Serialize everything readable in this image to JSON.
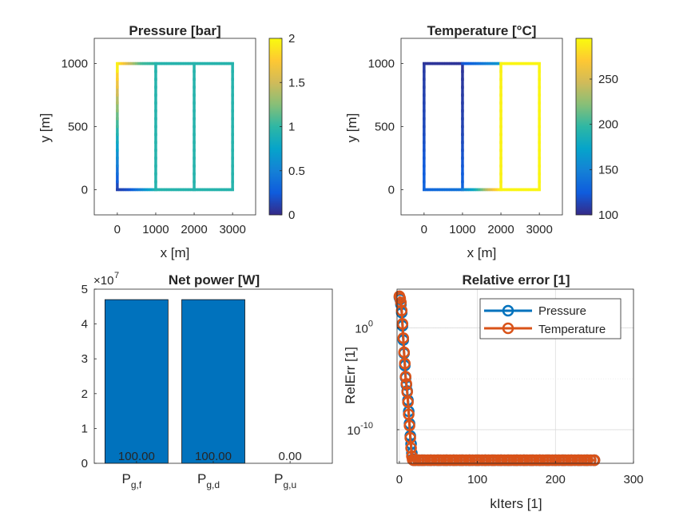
{
  "colors": {
    "bar": "#0072BD",
    "pressure": "#0072BD",
    "temperature": "#D95319",
    "parula": [
      "#352A87",
      "#0F5CDD",
      "#1481D6",
      "#06A4CA",
      "#2EB7A4",
      "#87BF77",
      "#D1BB59",
      "#FEC832",
      "#F9FB0E"
    ]
  },
  "chart_data": [
    {
      "type": "heatmap",
      "name": "pressure-network",
      "title": "Pressure [bar]",
      "xlabel": "x [m]",
      "ylabel": "y [m]",
      "xlim": [
        -600,
        3600
      ],
      "ylim": [
        -200,
        1200
      ],
      "xticks": [
        0,
        1000,
        2000,
        3000
      ],
      "yticks": [
        0,
        500,
        1000
      ],
      "colorbar": {
        "clim": [
          0,
          2
        ],
        "ticks": [
          0,
          0.5,
          1,
          1.5,
          2
        ],
        "tick_labels": [
          "0",
          "0.5",
          "1",
          "1.5",
          "2"
        ]
      },
      "edges": [
        {
          "from": [
            0,
            0
          ],
          "to": [
            0,
            1000
          ],
          "values": [
            0.1,
            0.55,
            1.0,
            1.45,
            2.0
          ]
        },
        {
          "from": [
            0,
            1000
          ],
          "to": [
            1000,
            1000
          ],
          "values": [
            2.0,
            1.5,
            1.05,
            1.0
          ]
        },
        {
          "from": [
            0,
            0
          ],
          "to": [
            1000,
            0
          ],
          "values": [
            0.1,
            0.2,
            0.55,
            0.9
          ]
        },
        {
          "from": [
            1000,
            0
          ],
          "to": [
            1000,
            1000
          ],
          "values": [
            0.95,
            0.95
          ]
        },
        {
          "from": [
            1000,
            0
          ],
          "to": [
            2000,
            0
          ],
          "values": [
            0.95,
            0.95
          ]
        },
        {
          "from": [
            1000,
            1000
          ],
          "to": [
            2000,
            1000
          ],
          "values": [
            0.95,
            0.95
          ]
        },
        {
          "from": [
            2000,
            0
          ],
          "to": [
            2000,
            1000
          ],
          "values": [
            0.95,
            0.95
          ]
        },
        {
          "from": [
            2000,
            0
          ],
          "to": [
            3000,
            0
          ],
          "values": [
            0.95,
            0.95
          ]
        },
        {
          "from": [
            2000,
            1000
          ],
          "to": [
            3000,
            1000
          ],
          "values": [
            0.95,
            0.95
          ]
        },
        {
          "from": [
            3000,
            0
          ],
          "to": [
            3000,
            1000
          ],
          "values": [
            0.95,
            0.95
          ]
        }
      ]
    },
    {
      "type": "heatmap",
      "name": "temperature-network",
      "title": "Temperature [°C]",
      "xlabel": "x [m]",
      "ylabel": "y [m]",
      "xlim": [
        -600,
        3600
      ],
      "ylim": [
        -200,
        1200
      ],
      "xticks": [
        0,
        1000,
        2000,
        3000
      ],
      "yticks": [
        0,
        500,
        1000
      ],
      "colorbar": {
        "clim": [
          100,
          295
        ],
        "ticks": [
          100,
          150,
          200,
          250
        ],
        "tick_labels": [
          "100",
          "150",
          "200",
          "250"
        ]
      },
      "edges": [
        {
          "from": [
            0,
            0
          ],
          "to": [
            0,
            1000
          ],
          "values": [
            130,
            115,
            108
          ]
        },
        {
          "from": [
            0,
            1000
          ],
          "to": [
            1000,
            1000
          ],
          "values": [
            105,
            105
          ]
        },
        {
          "from": [
            1000,
            0
          ],
          "to": [
            1000,
            1000
          ],
          "values": [
            130,
            112,
            105
          ]
        },
        {
          "from": [
            0,
            0
          ],
          "to": [
            1000,
            0
          ],
          "values": [
            130,
            140
          ]
        },
        {
          "from": [
            1000,
            0
          ],
          "to": [
            2000,
            0
          ],
          "values": [
            145,
            180,
            240,
            290
          ]
        },
        {
          "from": [
            1000,
            1000
          ],
          "to": [
            2000,
            1000
          ],
          "values": [
            120,
            140,
            165
          ]
        },
        {
          "from": [
            2000,
            0
          ],
          "to": [
            2000,
            1000
          ],
          "values": [
            290,
            290
          ]
        },
        {
          "from": [
            2000,
            0
          ],
          "to": [
            3000,
            0
          ],
          "values": [
            292,
            292
          ]
        },
        {
          "from": [
            2000,
            1000
          ],
          "to": [
            3000,
            1000
          ],
          "values": [
            292,
            292
          ]
        },
        {
          "from": [
            3000,
            0
          ],
          "to": [
            3000,
            1000
          ],
          "values": [
            292,
            292
          ]
        }
      ]
    },
    {
      "type": "bar",
      "name": "net-power",
      "title": "Net power [W]",
      "categories": [
        "P_{g,f}",
        "P_{g,d}",
        "P_{g,u}"
      ],
      "category_labels": [
        {
          "main": "P",
          "sub": "g,f"
        },
        {
          "main": "P",
          "sub": "g,d"
        },
        {
          "main": "P",
          "sub": "g,u"
        }
      ],
      "values": [
        47000000.0,
        47000000.0,
        0
      ],
      "data_labels": [
        "100.00",
        "100.00",
        "0.00"
      ],
      "ylim": [
        0,
        50000000.0
      ],
      "yticks": [
        0,
        1,
        2,
        3,
        4,
        5
      ],
      "exponent_label": "×10",
      "exponent_power": "7"
    },
    {
      "type": "line",
      "name": "relative-error",
      "title": "Relative error [1]",
      "xlabel": "kIters [1]",
      "ylabel": "RelErr [1]",
      "xlim": [
        -3,
        300
      ],
      "xticks": [
        0,
        100,
        200,
        300
      ],
      "yscale": "log",
      "ylog10_range": [
        -13.3,
        3.8
      ],
      "yticks": [
        {
          "base": "10",
          "exp": "0",
          "value": 0
        },
        {
          "base": "10",
          "exp": "-10",
          "value": -10
        }
      ],
      "grid": true,
      "legend": "top-right",
      "series": [
        {
          "name": "Pressure",
          "x": [
            0,
            1,
            2,
            3,
            4,
            5,
            6,
            7,
            8,
            9,
            10,
            11,
            12,
            13,
            14,
            15,
            16,
            17,
            18,
            20,
            25,
            30,
            40,
            50,
            60,
            70,
            80,
            90,
            100,
            110,
            120,
            130,
            140,
            150,
            160,
            170,
            180,
            190,
            200,
            210,
            220,
            230,
            240,
            250
          ],
          "log10y": [
            3.0,
            2.8,
            2.3,
            1.5,
            0.2,
            -1.2,
            -2.5,
            -3.7,
            -4.9,
            -5.6,
            -6.2,
            -7.1,
            -8.2,
            -9.4,
            -10.6,
            -11.4,
            -12.3,
            -12.9,
            -13.0,
            -13.0,
            -13.0,
            -13.0,
            -13.0,
            -13.0,
            -13.0,
            -13.0,
            -13.0,
            -13.0,
            -13.0,
            -13.0,
            -13.0,
            -13.0,
            -13.0,
            -13.0,
            -13.0,
            -13.0,
            -13.0,
            -13.0,
            -13.0,
            -13.0,
            -13.0,
            -13.0,
            -13.0,
            -13.0
          ]
        },
        {
          "name": "Temperature",
          "x": [
            0,
            1,
            2,
            3,
            4,
            5,
            6,
            7,
            8,
            9,
            10,
            11,
            12,
            13,
            14,
            15,
            16,
            17,
            18,
            20,
            25,
            30,
            40,
            50,
            60,
            70,
            80,
            90,
            100,
            110,
            120,
            130,
            140,
            150,
            160,
            170,
            180,
            190,
            200,
            210,
            220,
            230,
            240,
            250
          ],
          "log10y": [
            3.1,
            2.9,
            2.5,
            1.7,
            0.4,
            -1.0,
            -2.4,
            -3.5,
            -4.8,
            -5.5,
            -6.3,
            -7.3,
            -8.5,
            -9.6,
            -10.8,
            -11.8,
            -12.6,
            -12.95,
            -13.0,
            -13.0,
            -13.0,
            -13.0,
            -13.0,
            -13.0,
            -13.0,
            -13.0,
            -13.0,
            -13.0,
            -13.0,
            -13.0,
            -13.0,
            -13.0,
            -13.0,
            -13.0,
            -13.0,
            -13.0,
            -13.0,
            -13.0,
            -13.0,
            -13.0,
            -13.0,
            -13.0,
            -13.0,
            -13.0
          ]
        }
      ]
    }
  ]
}
